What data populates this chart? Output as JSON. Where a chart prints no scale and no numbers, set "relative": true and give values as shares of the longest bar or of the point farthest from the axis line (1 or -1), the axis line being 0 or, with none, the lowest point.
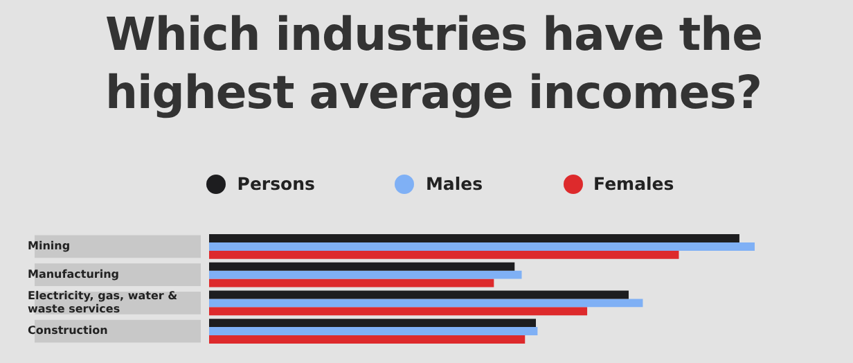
{
  "chart_data": {
    "type": "bar",
    "orientation": "horizontal",
    "relative": true,
    "title": "Which industries have the highest average incomes?",
    "categories": [
      "Mining",
      "Manufacturing",
      "Electricity, gas, water & waste services",
      "Construction"
    ],
    "series": [
      {
        "name": "Persons",
        "color": "#1d1d1f",
        "values": [
          0.972,
          0.56,
          0.769,
          0.599
        ]
      },
      {
        "name": "Males",
        "color": "#7fb0f5",
        "values": [
          1,
          0.573,
          0.795,
          0.602
        ]
      },
      {
        "name": "Females",
        "color": "#dd2a2c",
        "values": [
          0.861,
          0.522,
          0.693,
          0.579
        ]
      }
    ],
    "legend": "top"
  }
}
